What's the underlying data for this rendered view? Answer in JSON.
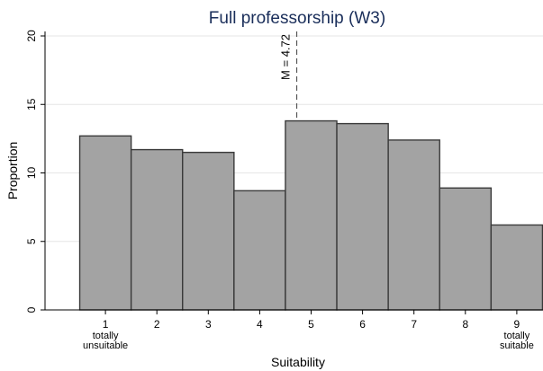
{
  "chart_data": {
    "type": "bar",
    "title": "Full professorship (W3)",
    "xlabel": "Suitability",
    "ylabel": "Proportion",
    "categories": [
      "1",
      "2",
      "3",
      "4",
      "5",
      "6",
      "7",
      "8",
      "9"
    ],
    "category_sublabels": {
      "1": [
        "totally",
        "unsuitable"
      ],
      "9": [
        "totally",
        "suitable"
      ]
    },
    "values": [
      12.7,
      11.7,
      11.5,
      8.7,
      13.8,
      13.6,
      12.4,
      8.9,
      6.2
    ],
    "xlim": [
      0,
      9.5
    ],
    "ylim": [
      0,
      20.5
    ],
    "yticks": [
      0,
      5,
      10,
      15,
      20
    ],
    "grid": true,
    "bar_color": "#a3a3a3",
    "bar_edge_color": "#3a3a3a",
    "mean": {
      "value": 4.72,
      "label": "M = 4.72"
    }
  }
}
